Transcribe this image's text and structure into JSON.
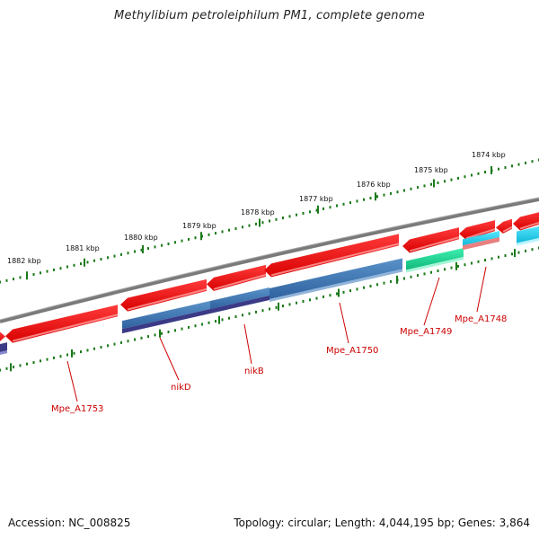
{
  "title": "Methylibium petroleiphilum PM1, complete genome",
  "footer": {
    "accession": "Accession: NC_008825",
    "summary": "Topology: circular; Length: 4,044,195 bp; Genes: 3,864"
  },
  "ruler_labels": [
    "1882 kbp",
    "1881 kbp",
    "1880 kbp",
    "1879 kbp",
    "1878 kbp",
    "1877 kbp",
    "1876 kbp",
    "1875 kbp",
    "1874 kbp"
  ],
  "gene_labels": [
    "Mpe_A1753",
    "nikD",
    "nikB",
    "Mpe_A1750",
    "Mpe_A1749",
    "Mpe_A1748"
  ],
  "colors": {
    "backbone": "#7a7a7a",
    "gene_red": "#e8000b",
    "label_red": "#cc0000",
    "tick_green": "#1a7a1a",
    "blue": "#3d78b0",
    "navy": "#3b3a86",
    "teal": "#18d38f",
    "cyan": "#19cfea",
    "pink": "#e88080"
  }
}
